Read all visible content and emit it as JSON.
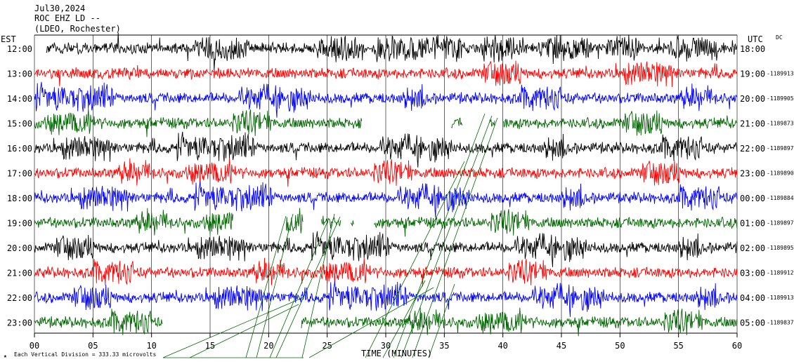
{
  "header": {
    "date": "Jul30,2024",
    "station": "ROC EHZ LD --",
    "network": "(LDEO, Rochester)"
  },
  "left_axis_label": "EST",
  "right_axis_label": "UTC",
  "dc_label": "DC",
  "footer": {
    "scale_note": "Each Vertical Division =  333.33 microvolts",
    "x_axis_title": "TIME (MINUTES)"
  },
  "chart_data": {
    "type": "line",
    "title": "ROC EHZ LD --",
    "xlabel": "TIME (MINUTES)",
    "xlim": [
      0,
      60
    ],
    "x_ticks": [
      "00",
      "05",
      "10",
      "15",
      "20",
      "25",
      "30",
      "35",
      "40",
      "45",
      "50",
      "55",
      "60"
    ],
    "grid": true,
    "colors": [
      "#000000",
      "#ff0000",
      "#0000ff",
      "#006600"
    ],
    "rows": [
      {
        "est": "12:00",
        "utc": "18:00",
        "dc": "",
        "color": "#000000",
        "gaps": [
          [
            0,
            1
          ]
        ]
      },
      {
        "est": "13:00",
        "utc": "19:00",
        "dc": "1189913",
        "color": "#ff0000",
        "gaps": []
      },
      {
        "est": "14:00",
        "utc": "20:00",
        "dc": "1189905",
        "color": "#0000ff",
        "gaps": []
      },
      {
        "est": "15:00",
        "utc": "21:00",
        "dc": "1189873",
        "color": "#006600",
        "gaps": [
          [
            28,
            35.6
          ],
          [
            36.6,
            38.8
          ],
          [
            39.3,
            40
          ]
        ]
      },
      {
        "est": "16:00",
        "utc": "22:00",
        "dc": "1189897",
        "color": "#000000",
        "gaps": []
      },
      {
        "est": "17:00",
        "utc": "23:00",
        "dc": "1189890",
        "color": "#ff0000",
        "gaps": []
      },
      {
        "est": "18:00",
        "utc": "00:00",
        "dc": "1189884",
        "color": "#0000ff",
        "gaps": []
      },
      {
        "est": "19:00",
        "utc": "01:00",
        "dc": "1189897",
        "color": "#006600",
        "gaps": [
          [
            17,
            21.5
          ],
          [
            23,
            24.5
          ],
          [
            26.2,
            27
          ],
          [
            27.3,
            29
          ]
        ]
      },
      {
        "est": "20:00",
        "utc": "02:00",
        "dc": "1189895",
        "color": "#000000",
        "gaps": []
      },
      {
        "est": "21:00",
        "utc": "03:00",
        "dc": "1189912",
        "color": "#ff0000",
        "gaps": []
      },
      {
        "est": "22:00",
        "utc": "04:00",
        "dc": "1189913",
        "color": "#0000ff",
        "gaps": []
      },
      {
        "est": "23:00",
        "utc": "05:00",
        "dc": "1189837",
        "color": "#006600",
        "gaps": [
          [
            11,
            22.8
          ]
        ]
      }
    ]
  }
}
